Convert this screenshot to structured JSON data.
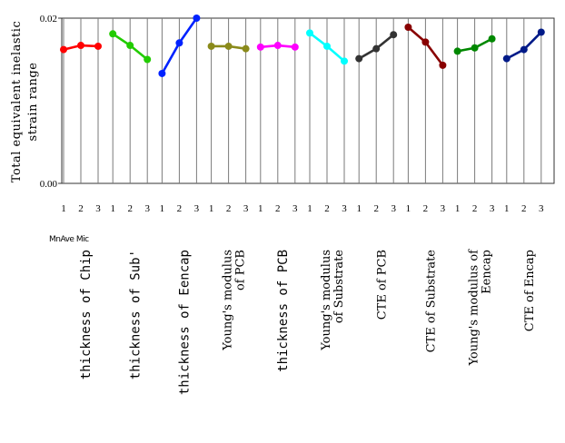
{
  "chart_data": {
    "type": "line",
    "ylabel_line1": "Total equivalent inelastic",
    "ylabel_line2": "strain range",
    "ylim": [
      0,
      0.02
    ],
    "yticks": [
      "0.00",
      "0.02"
    ],
    "levels": [
      "1",
      "2",
      "3"
    ],
    "level_note": "MnAve Mic",
    "grid": "vertical",
    "series": [
      {
        "factor": "thickness of Chip",
        "color": "#ff0000",
        "values": [
          0.0162,
          0.0167,
          0.0166
        ]
      },
      {
        "factor": "thickness of Sub'",
        "color": "#22cc00",
        "values": [
          0.0181,
          0.0167,
          0.015
        ]
      },
      {
        "factor": "thickness of Eencap",
        "color": "#0022ff",
        "values": [
          0.0133,
          0.017,
          0.02
        ]
      },
      {
        "factor": "Young's modulus of PCB",
        "color": "#8a8a1a",
        "values": [
          0.0166,
          0.0166,
          0.0163
        ]
      },
      {
        "factor": "thickness of PCB",
        "color": "#ff00ff",
        "values": [
          0.0165,
          0.0167,
          0.0165
        ]
      },
      {
        "factor": "Young's modulus of Substrate",
        "color": "#00ffff",
        "values": [
          0.0182,
          0.0166,
          0.0148
        ]
      },
      {
        "factor": "CTE of PCB",
        "color": "#333333",
        "values": [
          0.0151,
          0.0163,
          0.018
        ]
      },
      {
        "factor": "CTE of Substrate",
        "color": "#880000",
        "values": [
          0.0189,
          0.0171,
          0.0143
        ]
      },
      {
        "factor": "Young's modulus of Eencap",
        "color": "#008800",
        "values": [
          0.016,
          0.0164,
          0.0175
        ]
      },
      {
        "factor": "CTE of Encap",
        "color": "#001a88",
        "values": [
          0.0151,
          0.0162,
          0.0183
        ]
      }
    ],
    "factor_labels": [
      {
        "lines": [
          "thickness of Chip"
        ]
      },
      {
        "lines": [
          "thickness of Sub'"
        ]
      },
      {
        "lines": [
          "thickness of Eencap"
        ]
      },
      {
        "lines": [
          "Young's modulus",
          "of PCB"
        ]
      },
      {
        "lines": [
          "thickness of PCB"
        ]
      },
      {
        "lines": [
          "Young's modulus",
          "of Substrate"
        ]
      },
      {
        "lines": [
          "CTE of PCB"
        ]
      },
      {
        "lines": [
          "CTE of Substrate"
        ]
      },
      {
        "lines": [
          "Young's modulus of",
          "Eencap"
        ]
      },
      {
        "lines": [
          "CTE of Encap"
        ]
      }
    ]
  }
}
